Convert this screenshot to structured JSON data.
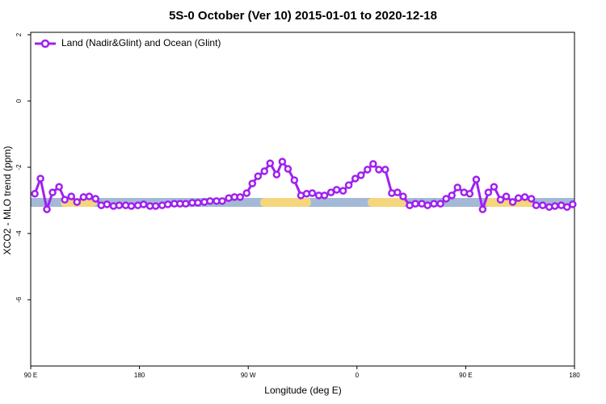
{
  "chart_data": {
    "type": "line",
    "title": "5S-0 October (Ver 10)   2015-01-01 to 2020-12-18",
    "x_label": "Longitude (deg E)",
    "y_label": "XCO2 - MLO trend (ppm)",
    "xlim": [
      90,
      540
    ],
    "ylim": [
      -8,
      2
    ],
    "xticks": [
      {
        "value": 90,
        "label": "90 E"
      },
      180,
      {
        "value": 270,
        "label": "90 W"
      },
      {
        "value": 360,
        "label": "0"
      },
      {
        "value": 450,
        "label": "90 E"
      },
      {
        "value": 540,
        "label": "180"
      }
    ],
    "yticks": [
      2,
      0,
      -2,
      -4,
      -6
    ],
    "grid": false,
    "legend": "top-left",
    "x": [
      93.4,
      98.1,
      103.4,
      108.1,
      113.5,
      118.2,
      123.6,
      128.3,
      133.7,
      138.4,
      143.7,
      148.4,
      153.1,
      158.5,
      163.2,
      168.6,
      173.3,
      178.7,
      183.4,
      188.7,
      193.4,
      198.8,
      203.5,
      208.9,
      213.6,
      218.3,
      223.7,
      228.4,
      233.7,
      238.4,
      243.8,
      248.5,
      253.9,
      258.6,
      263.3,
      268.7,
      273.4,
      278.1,
      283.4,
      288.1,
      293.5,
      298.2,
      302.9,
      308.2,
      313.6,
      318.3,
      323.0,
      328.4,
      333.1,
      338.5,
      343.2,
      348.5,
      353.2,
      358.6,
      363.3,
      368.7,
      373.4,
      378.1,
      383.4,
      388.8,
      393.5,
      398.2,
      403.6,
      408.3,
      413.7,
      418.4,
      423.7,
      429.1,
      433.8,
      438.5,
      443.2,
      448.6,
      453.3,
      458.7,
      464.0,
      468.7,
      473.4,
      478.8,
      483.5,
      488.9,
      493.6,
      498.9,
      504.3,
      508.3,
      513.7,
      519.1,
      523.8,
      529.1,
      533.8,
      538.5
    ],
    "series": [
      {
        "name": "Land (Nadir&Glint) and Ocean (Glint)",
        "color": "#a020f0",
        "values": [
          -2.8,
          -2.34,
          -3.27,
          -2.76,
          -2.59,
          -2.98,
          -2.88,
          -3.05,
          -2.9,
          -2.88,
          -2.95,
          -3.15,
          -3.12,
          -3.17,
          -3.15,
          -3.15,
          -3.17,
          -3.15,
          -3.12,
          -3.17,
          -3.17,
          -3.15,
          -3.12,
          -3.1,
          -3.1,
          -3.1,
          -3.07,
          -3.07,
          -3.05,
          -3.02,
          -3.02,
          -3.02,
          -2.93,
          -2.9,
          -2.9,
          -2.78,
          -2.49,
          -2.27,
          -2.12,
          -1.88,
          -2.22,
          -1.83,
          -2.05,
          -2.39,
          -2.85,
          -2.8,
          -2.78,
          -2.85,
          -2.85,
          -2.76,
          -2.68,
          -2.71,
          -2.54,
          -2.34,
          -2.24,
          -2.07,
          -1.9,
          -2.07,
          -2.07,
          -2.78,
          -2.76,
          -2.88,
          -3.15,
          -3.1,
          -3.1,
          -3.15,
          -3.1,
          -3.1,
          -2.95,
          -2.85,
          -2.61,
          -2.76,
          -2.8,
          -2.37,
          -3.27,
          -2.76,
          -2.59,
          -2.98,
          -2.88,
          -3.05,
          -2.93,
          -2.9,
          -2.95,
          -3.15,
          -3.15,
          -3.2,
          -3.17,
          -3.15,
          -3.2,
          -3.12
        ]
      }
    ]
  }
}
